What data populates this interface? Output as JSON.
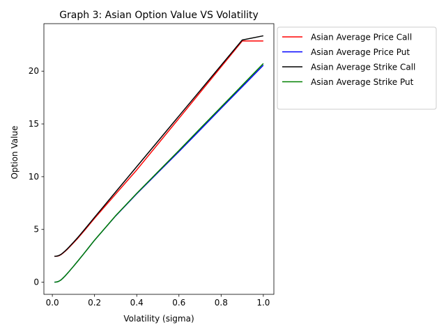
{
  "chart_data": {
    "type": "line",
    "title": "Graph 3: Asian Option Value VS Volatility",
    "xlabel": "Volatility (sigma)",
    "ylabel": "Option Value",
    "xlim": [
      -0.04,
      1.05
    ],
    "ylim": [
      -1.15,
      24.5
    ],
    "xticks": [
      0.0,
      0.2,
      0.4,
      0.6,
      0.8,
      1.0
    ],
    "xtick_labels": [
      "0.0",
      "0.2",
      "0.4",
      "0.6",
      "0.8",
      "1.0"
    ],
    "yticks": [
      0,
      5,
      10,
      15,
      20
    ],
    "ytick_labels": [
      "0",
      "5",
      "10",
      "15",
      "20"
    ],
    "grid": false,
    "legend_position": "outside-upper-right",
    "x": [
      0.01,
      0.02,
      0.03,
      0.04,
      0.05,
      0.06,
      0.07,
      0.08,
      0.1,
      0.12,
      0.15,
      0.2,
      0.3,
      0.4,
      0.5,
      0.6,
      0.7,
      0.8,
      0.9,
      1.0
    ],
    "series": [
      {
        "name": "Asian Average Price Call",
        "color": "#ff0000",
        "values": [
          2.45,
          2.46,
          2.5,
          2.6,
          2.75,
          2.92,
          3.1,
          3.3,
          3.72,
          4.15,
          4.85,
          6.05,
          8.35,
          10.64,
          13.08,
          15.52,
          17.97,
          20.41,
          22.86,
          22.86
        ]
      },
      {
        "name": "Asian Average Price Put",
        "color": "#0000ff",
        "values": [
          0.0,
          0.02,
          0.08,
          0.2,
          0.38,
          0.58,
          0.8,
          1.03,
          1.5,
          1.98,
          2.72,
          3.98,
          6.28,
          8.38,
          10.38,
          12.38,
          14.42,
          16.48,
          18.52,
          20.56
        ]
      },
      {
        "name": "Asian Average Strike Call",
        "color": "#000000",
        "values": [
          2.45,
          2.47,
          2.52,
          2.62,
          2.78,
          2.95,
          3.14,
          3.35,
          3.78,
          4.22,
          4.93,
          6.15,
          8.55,
          10.95,
          13.35,
          15.75,
          18.15,
          20.55,
          22.95,
          23.35
        ]
      },
      {
        "name": "Asian Average Strike Put",
        "color": "#008000",
        "values": [
          0.0,
          0.02,
          0.08,
          0.2,
          0.38,
          0.58,
          0.8,
          1.03,
          1.5,
          1.98,
          2.72,
          3.98,
          6.3,
          8.42,
          10.45,
          12.48,
          14.55,
          16.6,
          18.66,
          20.72
        ]
      }
    ]
  }
}
